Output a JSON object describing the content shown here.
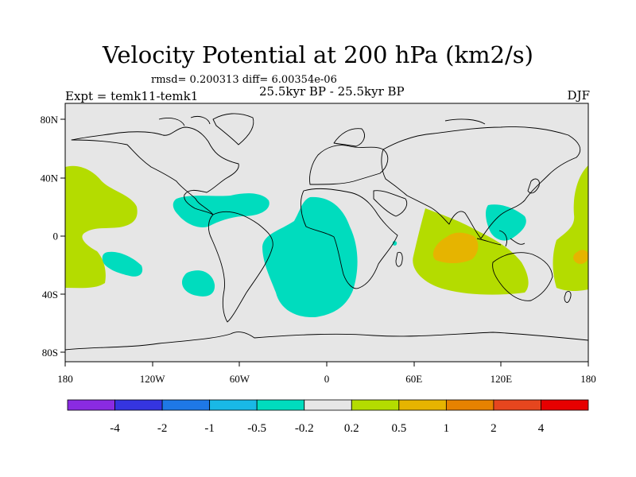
{
  "title": "Velocity Potential at 200 hPa (km2/s)",
  "stats": "rmsd= 0.200313 diff= 6.00354e-06",
  "experiment": "Expt = temk11-temk1",
  "period": "25.5kyr BP - 25.5kyr BP",
  "season": "DJF",
  "axes": {
    "x_ticks": [
      {
        "lon": -180,
        "label": "180"
      },
      {
        "lon": -120,
        "label": "120W"
      },
      {
        "lon": -60,
        "label": "60W"
      },
      {
        "lon": 0,
        "label": "0"
      },
      {
        "lon": 60,
        "label": "60E"
      },
      {
        "lon": 120,
        "label": "120E"
      },
      {
        "lon": 180,
        "label": "180"
      }
    ],
    "y_ticks": [
      {
        "lat": 80,
        "label": "80N"
      },
      {
        "lat": 40,
        "label": "40N"
      },
      {
        "lat": 0,
        "label": "0"
      },
      {
        "lat": -40,
        "label": "40S"
      },
      {
        "lat": -80,
        "label": "80S"
      }
    ]
  },
  "colorbar": {
    "colors": [
      "#8a2be2",
      "#3535e0",
      "#1e78e6",
      "#19b9e6",
      "#00dcbe",
      "#e6e6e6",
      "#b4dc00",
      "#e6b400",
      "#e68200",
      "#e6461e",
      "#e60000"
    ],
    "labels": [
      "-4",
      "-2",
      "-1",
      "-0.5",
      "-0.2",
      "0.2",
      "0.5",
      "1",
      "2",
      "4"
    ]
  }
}
